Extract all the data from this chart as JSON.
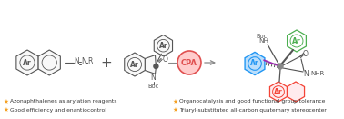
{
  "bg_color": "#ffffff",
  "fig_width": 3.78,
  "fig_height": 1.31,
  "dpi": 100,
  "bullet_color": "#f5a020",
  "bullet_texts_left": [
    "Azonaphthalenes as arylation reagents",
    "Good efficiency and enantiocontrol"
  ],
  "bullet_texts_right": [
    "Organocatalysis and good functional group tolerance",
    "Triaryl-substituted all-carbon quaternary stereocenter"
  ],
  "bullet_fontsize": 4.3,
  "gray": "#555555",
  "gray2": "#888888",
  "green": "#4caf50",
  "blue": "#2196f3",
  "red": "#f44336",
  "purple": "#9c27b0",
  "cpa_face": "#ffcccc",
  "cpa_edge": "#e05050"
}
